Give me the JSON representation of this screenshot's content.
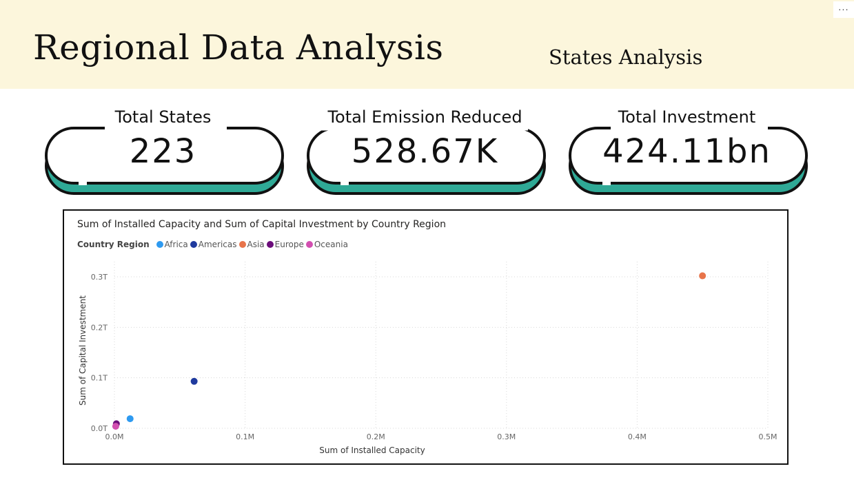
{
  "header": {
    "title": "Regional Data Analysis",
    "subtitle": "States Analysis",
    "more_label": "..."
  },
  "kpis": [
    {
      "label": "Total States",
      "value": "223"
    },
    {
      "label": "Total Emission Reduced",
      "value": "528.67K"
    },
    {
      "label": "Total Investment",
      "value": "424.11bn"
    }
  ],
  "colors": {
    "header_bg": "#fcf6dc",
    "kpi_accent": "#2fa996",
    "Africa": "#2e9af0",
    "Americas": "#1f3a9e",
    "Asia": "#e8744a",
    "Europe": "#6b0d7a",
    "Oceania": "#d24fb0"
  },
  "chart_data": {
    "type": "scatter",
    "title": "Sum of Installed Capacity and Sum of Capital Investment by Country Region",
    "legend_title": "Country Region",
    "legend_position": "top-left",
    "xlabel": "Sum of Installed Capacity",
    "ylabel": "Sum of Capital Investment",
    "xlim": [
      0,
      500000
    ],
    "ylim": [
      0,
      0.33
    ],
    "x_ticks": [
      {
        "value": 0,
        "label": "0.0M"
      },
      {
        "value": 100000,
        "label": "0.1M"
      },
      {
        "value": 200000,
        "label": "0.2M"
      },
      {
        "value": 300000,
        "label": "0.3M"
      },
      {
        "value": 400000,
        "label": "0.4M"
      },
      {
        "value": 500000,
        "label": "0.5M"
      }
    ],
    "y_ticks": [
      {
        "value": 0,
        "label": "0.0T"
      },
      {
        "value": 0.1,
        "label": "0.1T"
      },
      {
        "value": 0.2,
        "label": "0.2T"
      },
      {
        "value": 0.3,
        "label": "0.3T"
      }
    ],
    "grid": true,
    "series": [
      {
        "name": "Africa",
        "color": "#2e9af0",
        "points": [
          {
            "x": 12000,
            "y": 0.019
          }
        ]
      },
      {
        "name": "Americas",
        "color": "#1f3a9e",
        "points": [
          {
            "x": 61000,
            "y": 0.093
          }
        ]
      },
      {
        "name": "Asia",
        "color": "#e8744a",
        "points": [
          {
            "x": 450000,
            "y": 0.302
          }
        ]
      },
      {
        "name": "Europe",
        "color": "#6b0d7a",
        "points": [
          {
            "x": 1500,
            "y": 0.009
          }
        ]
      },
      {
        "name": "Oceania",
        "color": "#d24fb0",
        "points": [
          {
            "x": 1000,
            "y": 0.004
          }
        ]
      }
    ]
  }
}
